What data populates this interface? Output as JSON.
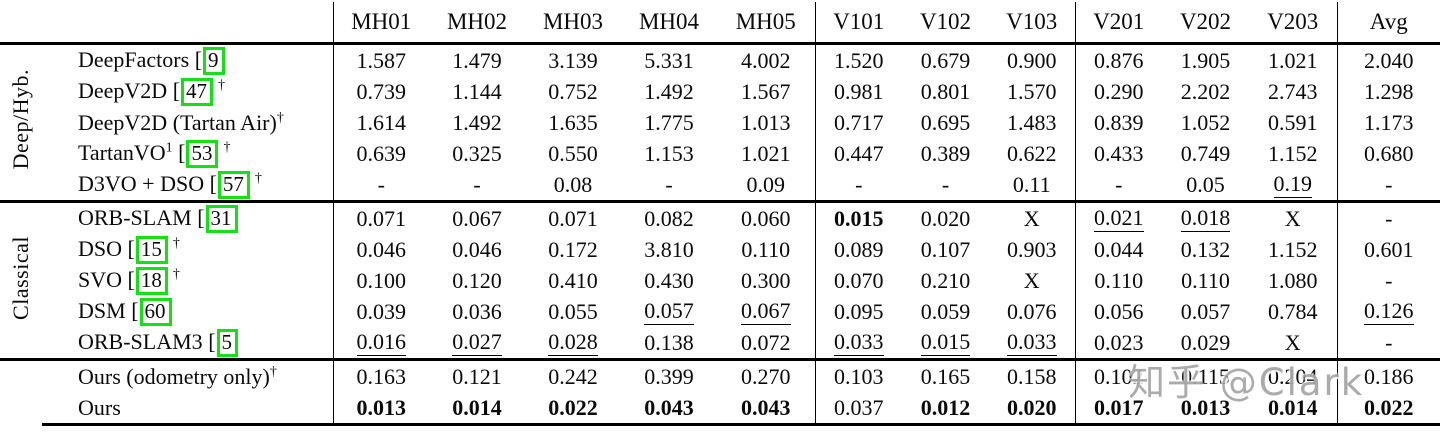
{
  "table": {
    "columns": [
      "MH01",
      "MH02",
      "MH03",
      "MH04",
      "MH05",
      "V101",
      "V102",
      "V103",
      "V201",
      "V202",
      "V203",
      "Avg"
    ],
    "groups": [
      {
        "label": "Deep/Hyb.",
        "rows": [
          {
            "method": "DeepFactors",
            "cite": "9",
            "dagger": false,
            "sup": "",
            "values": [
              "1.587",
              "1.479",
              "3.139",
              "5.331",
              "4.002",
              "1.520",
              "0.679",
              "0.900",
              "0.876",
              "1.905",
              "1.021",
              "2.040"
            ],
            "bold": [],
            "underline": []
          },
          {
            "method": "DeepV2D",
            "cite": "47",
            "dagger": true,
            "sup": "",
            "values": [
              "0.739",
              "1.144",
              "0.752",
              "1.492",
              "1.567",
              "0.981",
              "0.801",
              "1.570",
              "0.290",
              "2.202",
              "2.743",
              "1.298"
            ],
            "bold": [],
            "underline": []
          },
          {
            "method": "DeepV2D (Tartan Air)",
            "cite": "",
            "dagger": true,
            "sup": "",
            "values": [
              "1.614",
              "1.492",
              "1.635",
              "1.775",
              "1.013",
              "0.717",
              "0.695",
              "1.483",
              "0.839",
              "1.052",
              "0.591",
              "1.173"
            ],
            "bold": [],
            "underline": []
          },
          {
            "method": "TartanVO",
            "cite": "53",
            "dagger": true,
            "sup": "1",
            "values": [
              "0.639",
              "0.325",
              "0.550",
              "1.153",
              "1.021",
              "0.447",
              "0.389",
              "0.622",
              "0.433",
              "0.749",
              "1.152",
              "0.680"
            ],
            "bold": [],
            "underline": []
          },
          {
            "method": "D3VO + DSO",
            "cite": "57",
            "dagger": true,
            "sup": "",
            "values": [
              "-",
              "-",
              "0.08",
              "-",
              "0.09",
              "-",
              "-",
              "0.11",
              "-",
              "0.05",
              "0.19",
              "-"
            ],
            "bold": [],
            "underline": [
              10
            ]
          }
        ]
      },
      {
        "label": "Classical",
        "rows": [
          {
            "method": "ORB-SLAM",
            "cite": "31",
            "dagger": false,
            "sup": "",
            "values": [
              "0.071",
              "0.067",
              "0.071",
              "0.082",
              "0.060",
              "0.015",
              "0.020",
              "X",
              "0.021",
              "0.018",
              "X",
              "-"
            ],
            "bold": [
              5
            ],
            "underline": [
              8,
              9
            ]
          },
          {
            "method": "DSO",
            "cite": "15",
            "dagger": true,
            "sup": "",
            "values": [
              "0.046",
              "0.046",
              "0.172",
              "3.810",
              "0.110",
              "0.089",
              "0.107",
              "0.903",
              "0.044",
              "0.132",
              "1.152",
              "0.601"
            ],
            "bold": [],
            "underline": []
          },
          {
            "method": "SVO",
            "cite": "18",
            "dagger": true,
            "sup": "",
            "values": [
              "0.100",
              "0.120",
              "0.410",
              "0.430",
              "0.300",
              "0.070",
              "0.210",
              "X",
              "0.110",
              "0.110",
              "1.080",
              "-"
            ],
            "bold": [],
            "underline": []
          },
          {
            "method": "DSM",
            "cite": "60",
            "dagger": false,
            "sup": "",
            "values": [
              "0.039",
              "0.036",
              "0.055",
              "0.057",
              "0.067",
              "0.095",
              "0.059",
              "0.076",
              "0.056",
              "0.057",
              "0.784",
              "0.126"
            ],
            "bold": [],
            "underline": [
              3,
              4,
              11
            ]
          },
          {
            "method": "ORB-SLAM3",
            "cite": "5",
            "dagger": false,
            "sup": "",
            "values": [
              "0.016",
              "0.027",
              "0.028",
              "0.138",
              "0.072",
              "0.033",
              "0.015",
              "0.033",
              "0.023",
              "0.029",
              "X",
              "-"
            ],
            "bold": [],
            "underline": [
              0,
              1,
              2,
              5,
              6,
              7
            ]
          }
        ]
      },
      {
        "label": "",
        "rows": [
          {
            "method": "Ours (odometry only)",
            "cite": "",
            "dagger": true,
            "sup": "",
            "values": [
              "0.163",
              "0.121",
              "0.242",
              "0.399",
              "0.270",
              "0.103",
              "0.165",
              "0.158",
              "0.102",
              "0.115",
              "0.204",
              "0.186"
            ],
            "bold": [],
            "underline": []
          },
          {
            "method": "Ours",
            "cite": "",
            "dagger": false,
            "sup": "",
            "values": [
              "0.013",
              "0.014",
              "0.022",
              "0.043",
              "0.043",
              "0.037",
              "0.012",
              "0.020",
              "0.017",
              "0.013",
              "0.014",
              "0.022"
            ],
            "bold": [
              0,
              1,
              2,
              3,
              4,
              6,
              7,
              8,
              9,
              10,
              11
            ],
            "underline": []
          }
        ]
      }
    ]
  },
  "watermark": {
    "text": "知乎 @Clark"
  },
  "colors": {
    "text": "#0a0a0a",
    "rule": "#000000",
    "citation_box": "#15e015",
    "watermark": "#949494"
  }
}
